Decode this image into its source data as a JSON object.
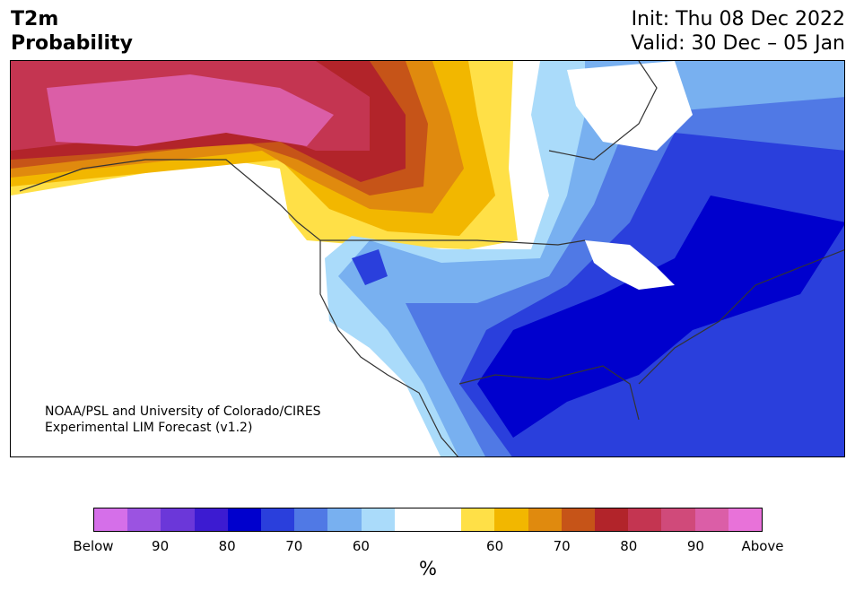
{
  "header": {
    "title_line1": "T2m",
    "title_line2": "Probability",
    "init_label": "Init: Thu 08 Dec 2022",
    "valid_label": "Valid: 30 Dec – 05 Jan"
  },
  "map": {
    "credit_line1": "NOAA/PSL and University of Colorado/CIRES",
    "credit_line2": "Experimental LIM Forecast (v1.2)"
  },
  "colorbar": {
    "colors": [
      "#d56fe9",
      "#9b53e1",
      "#6b37d9",
      "#3c1bd1",
      "#0000cd",
      "#2a3fdc",
      "#5079e5",
      "#78b0f0",
      "#aadbfa",
      "#ffffff",
      "#ffffff",
      "#ffe047",
      "#f2b700",
      "#e08a0e",
      "#c65418",
      "#b2242a",
      "#c43551",
      "#d04a7a",
      "#db5ea7",
      "#e872d9"
    ],
    "tick_labels": [
      "Below",
      "90",
      "80",
      "70",
      "60",
      "60",
      "70",
      "80",
      "90",
      "Above"
    ],
    "unit_label": "%"
  }
}
